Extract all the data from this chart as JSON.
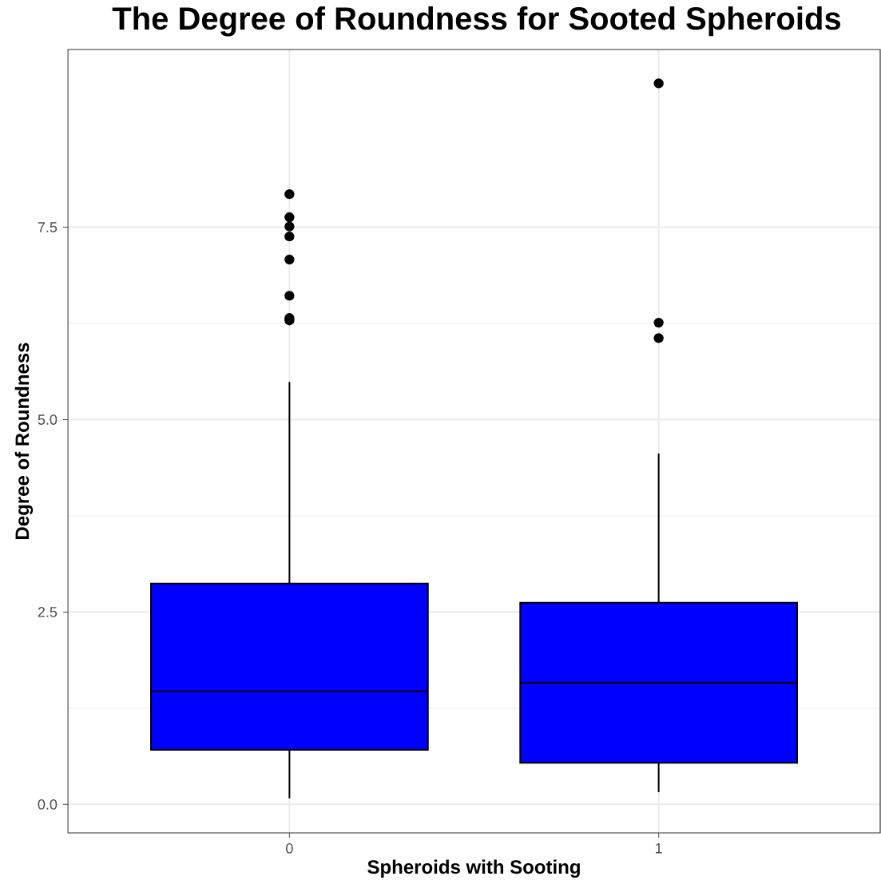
{
  "chart_data": {
    "type": "box",
    "title": "The Degree of Roundness for Sooted Spheroids",
    "xlabel": "Spheroids with Sooting",
    "ylabel": "Degree of Roundness",
    "categories": [
      "0",
      "1"
    ],
    "boxes": [
      {
        "low": 0.08,
        "q1": 0.71,
        "median": 1.47,
        "q3": 2.87,
        "high": 5.49,
        "outliers": [
          7.93,
          7.63,
          7.51,
          7.38,
          7.08,
          6.61,
          6.32,
          6.29
        ]
      },
      {
        "low": 0.16,
        "q1": 0.54,
        "median": 1.58,
        "q3": 2.62,
        "high": 4.56,
        "outliers": [
          9.37,
          6.26,
          6.06
        ]
      }
    ],
    "color": "#0000ff",
    "ylim": [
      -0.37,
      9.81
    ],
    "yticks": [
      {
        "value": 0,
        "label": "0.0"
      },
      {
        "value": 2.5,
        "label": "2.5"
      },
      {
        "value": 5,
        "label": "5.0"
      },
      {
        "value": 7.5,
        "label": "7.5"
      }
    ],
    "grid": true
  }
}
